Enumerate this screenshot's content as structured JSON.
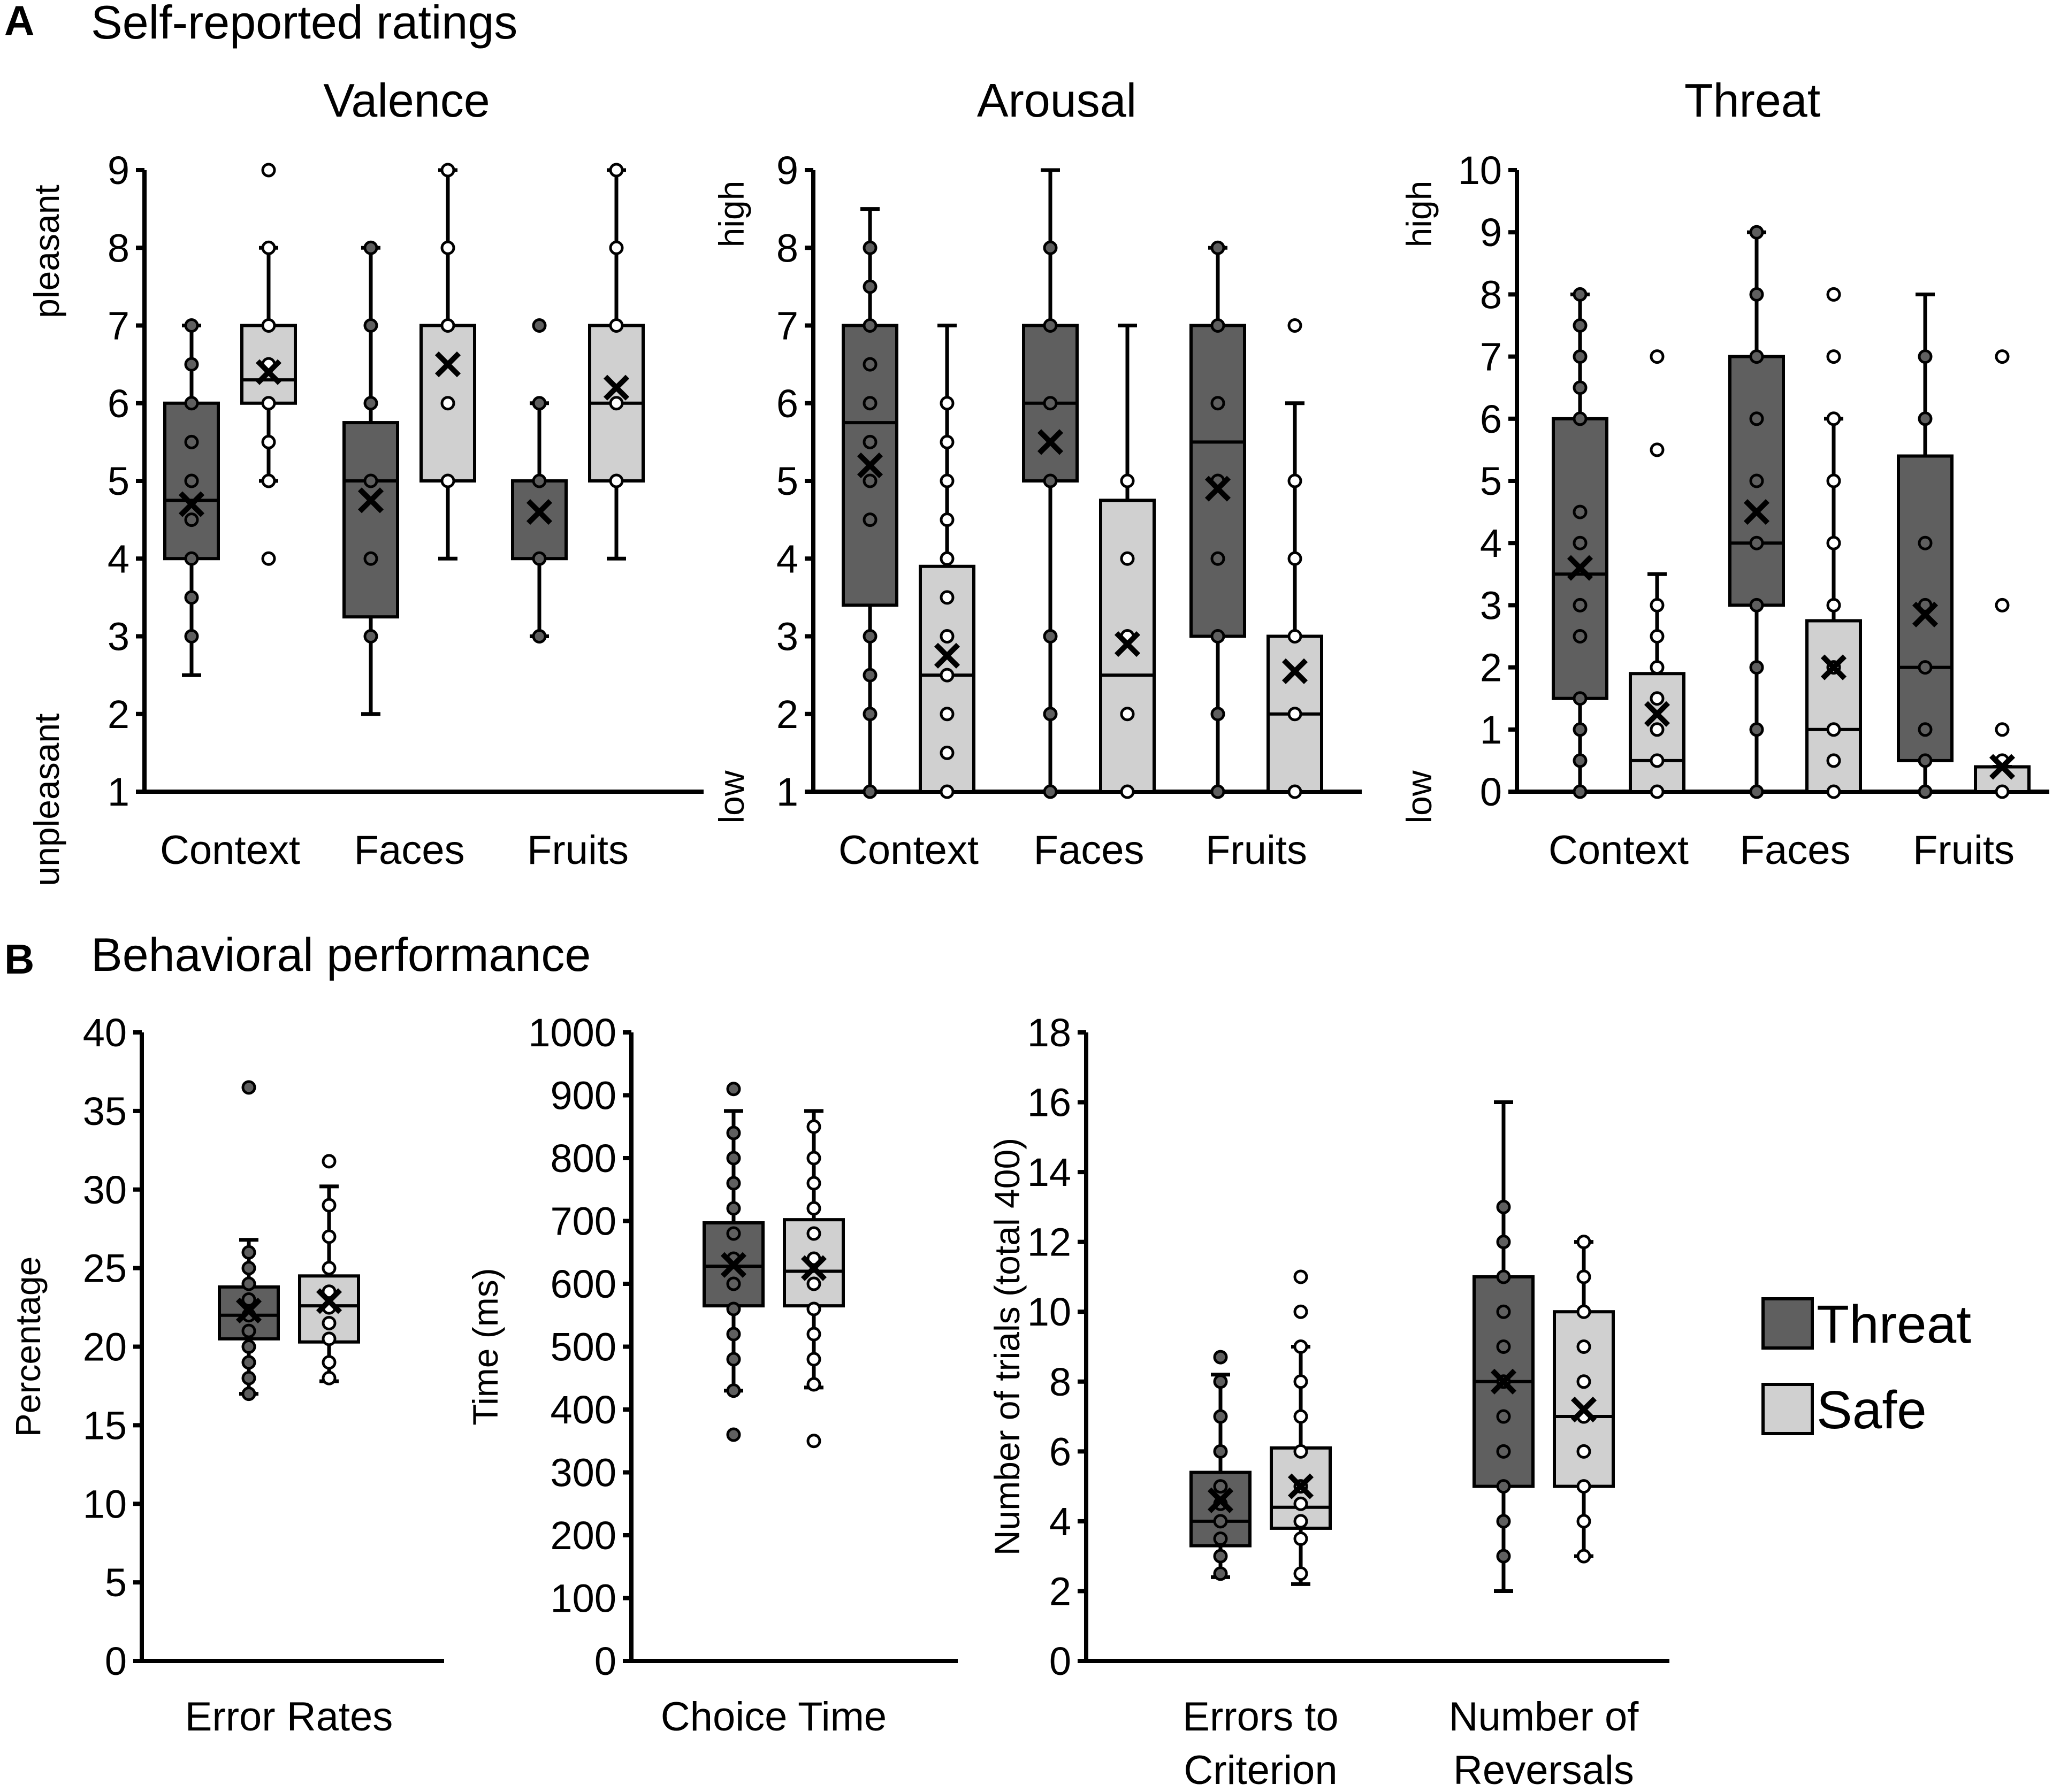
{
  "colors": {
    "threat": "#5f5f5f",
    "safe": "#d0d0d0"
  },
  "panel_a": {
    "letter": "A",
    "title": "Self-reported ratings"
  },
  "panel_b": {
    "letter": "B",
    "title": "Behavioral performance"
  },
  "legend": [
    {
      "name": "Threat",
      "color": "#5f5f5f"
    },
    {
      "name": "Safe",
      "color": "#d0d0d0"
    }
  ],
  "chart_data": [
    {
      "id": "valence",
      "type": "box",
      "title": "Valence",
      "ylabel": "",
      "anchors": {
        "top": "pleasant",
        "bottom": "unpleasant"
      },
      "ylim": [
        1,
        9
      ],
      "yticks": [
        1,
        2,
        3,
        4,
        5,
        6,
        7,
        8,
        9
      ],
      "categories": [
        "Context",
        "Faces",
        "Fruits"
      ],
      "series_names": [
        "Threat",
        "Safe"
      ],
      "boxes": [
        {
          "category": "Context",
          "series": "Threat",
          "whisker_low": 2.5,
          "q1": 4.0,
          "median": 4.75,
          "q3": 6.0,
          "whisker_high": 7.0,
          "mean": 4.7,
          "points": [
            3.0,
            3.5,
            4.0,
            4.5,
            5.0,
            5.5,
            6.0,
            6.5,
            7.0
          ]
        },
        {
          "category": "Context",
          "series": "Safe",
          "whisker_low": 5.0,
          "q1": 6.0,
          "median": 6.3,
          "q3": 7.0,
          "whisker_high": 8.0,
          "mean": 6.4,
          "points": [
            4.0,
            5.0,
            5.5,
            6.0,
            6.5,
            7.0,
            8.0,
            9.0
          ]
        },
        {
          "category": "Faces",
          "series": "Threat",
          "whisker_low": 2.0,
          "q1": 3.25,
          "median": 5.0,
          "q3": 5.75,
          "whisker_high": 8.0,
          "mean": 4.75,
          "points": [
            3.0,
            4.0,
            5.0,
            6.0,
            7.0,
            8.0
          ]
        },
        {
          "category": "Faces",
          "series": "Safe",
          "whisker_low": 4.0,
          "q1": 5.0,
          "median": 7.0,
          "q3": 7.0,
          "whisker_high": 9.0,
          "mean": 6.5,
          "points": [
            5.0,
            6.0,
            7.0,
            8.0,
            9.0
          ]
        },
        {
          "category": "Fruits",
          "series": "Threat",
          "whisker_low": 3.0,
          "q1": 4.0,
          "median": 5.0,
          "q3": 5.0,
          "whisker_high": 6.0,
          "mean": 4.6,
          "points": [
            3.0,
            4.0,
            5.0,
            6.0,
            7.0
          ]
        },
        {
          "category": "Fruits",
          "series": "Safe",
          "whisker_low": 4.0,
          "q1": 5.0,
          "median": 6.0,
          "q3": 7.0,
          "whisker_high": 9.0,
          "mean": 6.2,
          "points": [
            5.0,
            6.0,
            7.0,
            8.0,
            9.0
          ]
        }
      ]
    },
    {
      "id": "arousal",
      "type": "box",
      "title": "Arousal",
      "ylabel": "",
      "anchors": {
        "top": "high",
        "bottom": "low"
      },
      "ylim": [
        1,
        9
      ],
      "yticks": [
        1,
        2,
        3,
        4,
        5,
        6,
        7,
        8,
        9
      ],
      "categories": [
        "Context",
        "Faces",
        "Fruits"
      ],
      "series_names": [
        "Threat",
        "Safe"
      ],
      "boxes": [
        {
          "category": "Context",
          "series": "Threat",
          "whisker_low": 1.0,
          "q1": 3.4,
          "median": 5.75,
          "q3": 7.0,
          "whisker_high": 8.5,
          "mean": 5.2,
          "points": [
            1.0,
            2.0,
            2.5,
            3.0,
            4.5,
            5.0,
            5.5,
            6.0,
            6.5,
            7.0,
            7.5,
            8.0
          ]
        },
        {
          "category": "Context",
          "series": "Safe",
          "whisker_low": 1.0,
          "q1": 1.0,
          "median": 2.5,
          "q3": 3.9,
          "whisker_high": 7.0,
          "mean": 2.75,
          "points": [
            1.0,
            1.5,
            2.0,
            2.5,
            3.0,
            3.5,
            4.0,
            4.5,
            5.0,
            5.5,
            6.0
          ]
        },
        {
          "category": "Faces",
          "series": "Threat",
          "whisker_low": 1.0,
          "q1": 5.0,
          "median": 6.0,
          "q3": 7.0,
          "whisker_high": 9.0,
          "mean": 5.5,
          "points": [
            1.0,
            2.0,
            3.0,
            5.0,
            6.0,
            7.0,
            8.0
          ]
        },
        {
          "category": "Faces",
          "series": "Safe",
          "whisker_low": 1.0,
          "q1": 1.0,
          "median": 2.5,
          "q3": 4.75,
          "whisker_high": 7.0,
          "mean": 2.9,
          "points": [
            1.0,
            2.0,
            3.0,
            4.0,
            5.0
          ]
        },
        {
          "category": "Fruits",
          "series": "Threat",
          "whisker_low": 1.0,
          "q1": 3.0,
          "median": 5.5,
          "q3": 7.0,
          "whisker_high": 8.0,
          "mean": 4.9,
          "points": [
            1.0,
            2.0,
            3.0,
            4.0,
            5.0,
            6.0,
            7.0,
            8.0
          ]
        },
        {
          "category": "Fruits",
          "series": "Safe",
          "whisker_low": 1.0,
          "q1": 1.0,
          "median": 2.0,
          "q3": 3.0,
          "whisker_high": 6.0,
          "mean": 2.55,
          "points": [
            1.0,
            2.0,
            3.0,
            4.0,
            5.0,
            7.0
          ]
        }
      ]
    },
    {
      "id": "threat",
      "type": "box",
      "title": "Threat",
      "ylabel": "",
      "anchors": {
        "top": "high",
        "bottom": "low"
      },
      "ylim": [
        0,
        10
      ],
      "yticks": [
        0,
        1,
        2,
        3,
        4,
        5,
        6,
        7,
        8,
        9,
        10
      ],
      "categories": [
        "Context",
        "Faces",
        "Fruits"
      ],
      "series_names": [
        "Threat",
        "Safe"
      ],
      "boxes": [
        {
          "category": "Context",
          "series": "Threat",
          "whisker_low": 0.0,
          "q1": 1.5,
          "median": 3.5,
          "q3": 6.0,
          "whisker_high": 8.0,
          "mean": 3.6,
          "points": [
            0.0,
            0.5,
            1.0,
            1.5,
            2.5,
            3.0,
            4.0,
            4.5,
            6.0,
            6.5,
            7.0,
            7.5,
            8.0
          ]
        },
        {
          "category": "Context",
          "series": "Safe",
          "whisker_low": 0.0,
          "q1": 0.0,
          "median": 0.5,
          "q3": 1.9,
          "whisker_high": 3.5,
          "mean": 1.25,
          "points": [
            0.0,
            0.5,
            1.0,
            1.5,
            2.0,
            2.5,
            3.0,
            5.5,
            7.0
          ]
        },
        {
          "category": "Faces",
          "series": "Threat",
          "whisker_low": 0.0,
          "q1": 3.0,
          "median": 4.0,
          "q3": 7.0,
          "whisker_high": 9.0,
          "mean": 4.5,
          "points": [
            0.0,
            1.0,
            2.0,
            3.0,
            4.0,
            5.0,
            6.0,
            7.0,
            8.0,
            9.0
          ]
        },
        {
          "category": "Faces",
          "series": "Safe",
          "whisker_low": 0.0,
          "q1": 0.0,
          "median": 1.0,
          "q3": 2.75,
          "whisker_high": 6.0,
          "mean": 2.0,
          "points": [
            0.0,
            0.5,
            1.0,
            2.0,
            3.0,
            4.0,
            5.0,
            6.0,
            7.0,
            8.0
          ]
        },
        {
          "category": "Fruits",
          "series": "Threat",
          "whisker_low": 0.0,
          "q1": 0.5,
          "median": 2.0,
          "q3": 5.4,
          "whisker_high": 8.0,
          "mean": 2.85,
          "points": [
            0.0,
            0.5,
            1.0,
            2.0,
            3.0,
            4.0,
            6.0,
            7.0
          ]
        },
        {
          "category": "Fruits",
          "series": "Safe",
          "whisker_low": 0.0,
          "q1": 0.0,
          "median": 0.0,
          "q3": 0.4,
          "whisker_high": 0.4,
          "mean": 0.4,
          "points": [
            0.0,
            0.5,
            1.0,
            3.0,
            7.0
          ]
        }
      ]
    },
    {
      "id": "error_rates",
      "type": "box",
      "title": "",
      "ylabel": "Percentage",
      "ylim": [
        0,
        40
      ],
      "yticks": [
        0,
        5,
        10,
        15,
        20,
        25,
        30,
        35,
        40
      ],
      "categories": [
        "Error Rates"
      ],
      "series_names": [
        "Threat",
        "Safe"
      ],
      "boxes": [
        {
          "category": "Error Rates",
          "series": "Threat",
          "whisker_low": 17.0,
          "q1": 20.5,
          "median": 22.0,
          "q3": 23.8,
          "whisker_high": 26.8,
          "mean": 22.3,
          "points": [
            17.0,
            18.0,
            19.0,
            20.0,
            21.0,
            22.0,
            23.0,
            24.0,
            25.0,
            26.0,
            36.5
          ]
        },
        {
          "category": "Error Rates",
          "series": "Safe",
          "whisker_low": 17.8,
          "q1": 20.3,
          "median": 22.6,
          "q3": 24.5,
          "whisker_high": 30.2,
          "mean": 22.9,
          "points": [
            18.0,
            19.0,
            20.5,
            21.5,
            22.5,
            23.5,
            25.0,
            27.0,
            29.0,
            31.8
          ]
        }
      ]
    },
    {
      "id": "choice_time",
      "type": "box",
      "title": "",
      "ylabel": "Time (ms)",
      "ylim": [
        0,
        1000
      ],
      "yticks": [
        0,
        100,
        200,
        300,
        400,
        500,
        600,
        700,
        800,
        900,
        1000
      ],
      "categories": [
        "Choice Time"
      ],
      "series_names": [
        "Threat",
        "Safe"
      ],
      "boxes": [
        {
          "category": "Choice Time",
          "series": "Threat",
          "whisker_low": 430,
          "q1": 565,
          "median": 628,
          "q3": 697,
          "whisker_high": 875,
          "mean": 630,
          "points": [
            360,
            430,
            480,
            520,
            560,
            600,
            640,
            680,
            720,
            760,
            800,
            840,
            910
          ]
        },
        {
          "category": "Choice Time",
          "series": "Safe",
          "whisker_low": 435,
          "q1": 565,
          "median": 620,
          "q3": 702,
          "whisker_high": 875,
          "mean": 625,
          "points": [
            350,
            440,
            480,
            520,
            560,
            600,
            640,
            680,
            720,
            760,
            800,
            850
          ]
        }
      ]
    },
    {
      "id": "trials",
      "type": "box",
      "title": "",
      "ylabel": "Number of trials (total 400)",
      "ylim": [
        0,
        18
      ],
      "yticks": [
        0,
        2,
        4,
        6,
        8,
        10,
        12,
        14,
        16,
        18
      ],
      "categories": [
        "Errors to Criterion",
        "Number of Reversals"
      ],
      "category_lines": [
        [
          "Errors to",
          "Criterion"
        ],
        [
          "Number  of",
          "Reversals"
        ]
      ],
      "series_names": [
        "Threat",
        "Safe"
      ],
      "boxes": [
        {
          "category": "Errors to Criterion",
          "series": "Threat",
          "whisker_low": 2.4,
          "q1": 3.3,
          "median": 4.0,
          "q3": 5.4,
          "whisker_high": 8.2,
          "mean": 4.6,
          "points": [
            2.5,
            3.0,
            3.5,
            4.0,
            4.5,
            5.0,
            6.0,
            7.0,
            8.0,
            8.7
          ]
        },
        {
          "category": "Errors to Criterion",
          "series": "Safe",
          "whisker_low": 2.2,
          "q1": 3.8,
          "median": 4.4,
          "q3": 6.1,
          "whisker_high": 9.0,
          "mean": 5.0,
          "points": [
            2.5,
            3.5,
            4.0,
            4.5,
            5.0,
            6.0,
            7.0,
            8.0,
            9.0,
            10.0,
            11.0
          ]
        },
        {
          "category": "Number of Reversals",
          "series": "Threat",
          "whisker_low": 2.0,
          "q1": 5.0,
          "median": 8.0,
          "q3": 11.0,
          "whisker_high": 16.0,
          "mean": 8.0,
          "points": [
            3.0,
            4.0,
            5.0,
            6.0,
            7.0,
            8.0,
            9.0,
            10.0,
            11.0,
            12.0,
            13.0
          ]
        },
        {
          "category": "Number of Reversals",
          "series": "Safe",
          "whisker_low": 3.0,
          "q1": 5.0,
          "median": 7.0,
          "q3": 10.0,
          "whisker_high": 12.0,
          "mean": 7.2,
          "points": [
            3.0,
            4.0,
            5.0,
            6.0,
            7.0,
            8.0,
            9.0,
            10.0,
            11.0,
            12.0
          ]
        }
      ]
    }
  ]
}
